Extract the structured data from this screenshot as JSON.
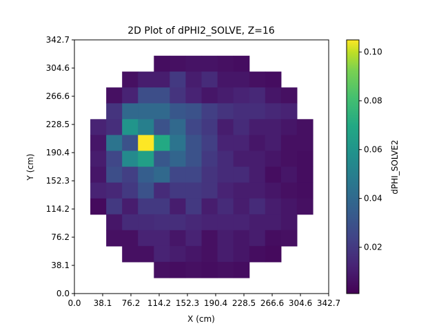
{
  "chart_data": {
    "type": "heatmap",
    "title": "2D Plot of dPHI2_SOLVE, Z=16",
    "xlabel": "X (cm)",
    "ylabel": "Y (cm)",
    "colorbar_label": "dPHI_SOLVE2",
    "colormap": "viridis",
    "xlim": [
      0,
      342.7
    ],
    "ylim": [
      0,
      342.7
    ],
    "x_ticks": [
      "0.0",
      "38.1",
      "76.2",
      "114.2",
      "152.3",
      "190.4",
      "228.5",
      "266.6",
      "304.6",
      "342.7"
    ],
    "y_ticks": [
      "0.0",
      "38.1",
      "76.2",
      "114.2",
      "152.3",
      "190.4",
      "228.5",
      "266.6",
      "304.6",
      "342.7"
    ],
    "clim": [
      0.001,
      0.105
    ],
    "colorbar_ticks": [
      "0.02",
      "0.04",
      "0.06",
      "0.08",
      "0.10"
    ],
    "colorbar_tick_values": [
      0.02,
      0.04,
      0.06,
      0.08,
      0.1
    ],
    "grid_size": [
      16,
      16
    ],
    "values": [
      [
        null,
        null,
        null,
        null,
        null,
        null,
        null,
        null,
        null,
        null,
        null,
        null,
        null,
        null,
        null,
        null
      ],
      [
        null,
        null,
        null,
        null,
        null,
        0.005,
        0.006,
        0.007,
        0.007,
        0.006,
        0.005,
        null,
        null,
        null,
        null,
        null
      ],
      [
        null,
        null,
        null,
        0.006,
        0.01,
        0.01,
        0.02,
        0.01,
        0.015,
        0.008,
        0.008,
        0.006,
        0.005,
        null,
        null,
        null
      ],
      [
        null,
        null,
        0.006,
        0.012,
        0.028,
        0.028,
        0.018,
        0.012,
        0.008,
        0.01,
        0.012,
        0.014,
        0.008,
        0.006,
        null,
        null
      ],
      [
        null,
        null,
        0.018,
        0.04,
        0.04,
        0.04,
        0.032,
        0.03,
        0.022,
        0.018,
        0.016,
        0.016,
        0.014,
        0.012,
        null,
        null
      ],
      [
        null,
        0.012,
        0.016,
        0.06,
        0.05,
        0.03,
        0.04,
        0.025,
        0.02,
        0.01,
        0.015,
        0.01,
        0.01,
        0.008,
        0.006,
        null
      ],
      [
        null,
        0.008,
        0.045,
        0.03,
        0.105,
        0.07,
        0.045,
        0.03,
        0.022,
        0.012,
        0.012,
        0.008,
        0.01,
        0.006,
        0.006,
        null
      ],
      [
        null,
        0.01,
        0.025,
        0.055,
        0.065,
        0.032,
        0.038,
        0.03,
        0.02,
        0.015,
        0.01,
        0.01,
        0.008,
        0.006,
        0.005,
        null
      ],
      [
        null,
        0.008,
        0.028,
        0.022,
        0.035,
        0.04,
        0.025,
        0.025,
        0.018,
        0.015,
        0.015,
        0.01,
        0.005,
        0.008,
        0.005,
        null
      ],
      [
        null,
        0.012,
        0.014,
        0.02,
        0.03,
        0.015,
        0.02,
        0.02,
        0.018,
        0.012,
        0.01,
        0.01,
        0.008,
        0.006,
        0.005,
        null
      ],
      [
        null,
        0.004,
        0.02,
        0.01,
        0.02,
        0.02,
        0.01,
        0.02,
        0.01,
        0.015,
        0.01,
        0.015,
        0.01,
        0.008,
        0.006,
        null
      ],
      [
        null,
        null,
        0.008,
        0.015,
        0.015,
        0.016,
        0.016,
        0.014,
        0.012,
        0.012,
        0.012,
        0.01,
        0.01,
        0.008,
        null,
        null
      ],
      [
        null,
        null,
        0.006,
        0.006,
        0.012,
        0.012,
        0.008,
        0.012,
        0.006,
        0.01,
        0.008,
        0.01,
        0.005,
        0.006,
        null,
        null
      ],
      [
        null,
        null,
        null,
        0.006,
        0.006,
        0.012,
        0.01,
        0.008,
        0.006,
        0.01,
        0.008,
        0.005,
        0.004,
        null,
        null,
        null
      ],
      [
        null,
        null,
        null,
        null,
        null,
        0.006,
        0.005,
        0.006,
        0.005,
        0.006,
        0.005,
        null,
        null,
        null,
        null,
        null
      ],
      [
        null,
        null,
        null,
        null,
        null,
        null,
        null,
        null,
        null,
        null,
        null,
        null,
        null,
        null,
        null,
        null
      ]
    ]
  }
}
